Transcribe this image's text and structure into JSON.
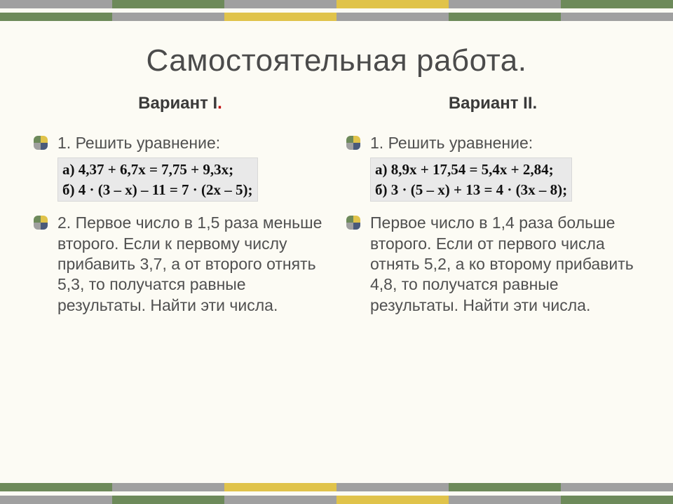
{
  "stripes": {
    "colors_row1": [
      "#a0a0a0",
      "#6d8a5a",
      "#a0a0a0",
      "#e0c34a",
      "#a0a0a0",
      "#6d8a5a"
    ],
    "colors_row2": [
      "#6d8a5a",
      "#a0a0a0",
      "#e0c34a",
      "#a0a0a0",
      "#6d8a5a",
      "#a0a0a0"
    ]
  },
  "bullet_colors": [
    "#6d8a5a",
    "#e0c34a",
    "#a0a0a0",
    "#4a5a7a"
  ],
  "title": "Самостоятельная работа.",
  "variant1": {
    "heading": "Вариант I",
    "dot": ".",
    "task1_label": "1. Решить уравнение:",
    "eq_a": "а) 4,37 + 6,7x = 7,75 + 9,3x;",
    "eq_b": "б) 4 · (3 – x) – 11 = 7 · (2x – 5);",
    "task2": "2. Первое число в 1,5 раза меньше второго. Если к первому числу прибавить 3,7, а от второго отнять 5,3, то получатся равные результаты. Найти эти числа."
  },
  "variant2": {
    "heading": "Вариант II.",
    "task1_label": "1. Решить уравнение:",
    "eq_a": "а) 8,9x + 17,54 = 5,4x + 2,84;",
    "eq_b": "б) 3 · (5 – x) + 13 = 4 · (3x – 8);",
    "task2": "Первое число в 1,4 раза больше второго. Если от первого числа отнять 5,2, а ко второму прибавить 4,8, то получатся равные результаты. Найти эти числа."
  }
}
